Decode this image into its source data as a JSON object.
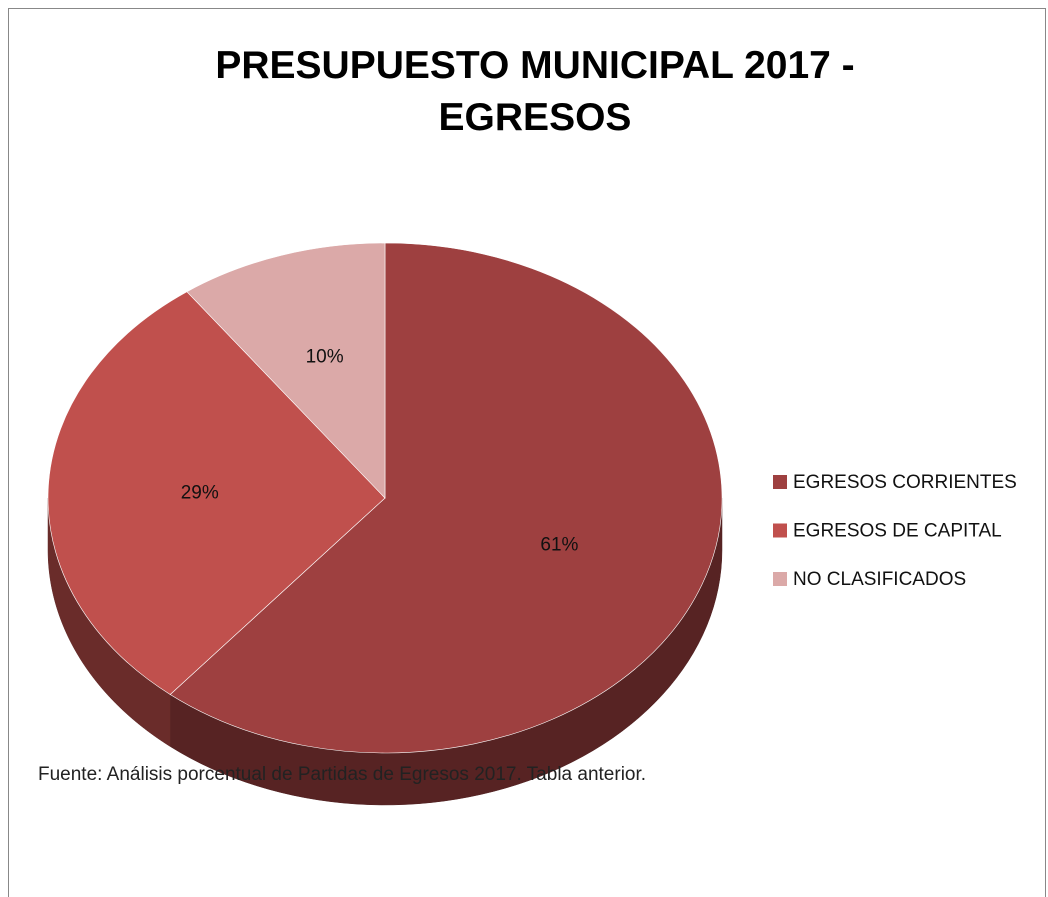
{
  "chart_data": {
    "type": "pie",
    "title": "PRESUPUESTO MUNICIPAL 2017 - EGRESOS",
    "categories": [
      "EGRESOS CORRIENTES",
      "EGRESOS DE CAPITAL",
      "NO CLASIFICADOS"
    ],
    "values": [
      61,
      29,
      10
    ],
    "value_labels": [
      "61%",
      "29%",
      "10%"
    ],
    "colors": [
      "#9e4040",
      "#c0504d",
      "#dba9a8"
    ],
    "legend": "right",
    "source": "Fuente: Análisis porcentual de Partidas de Egresos 2017. Tabla anterior."
  }
}
